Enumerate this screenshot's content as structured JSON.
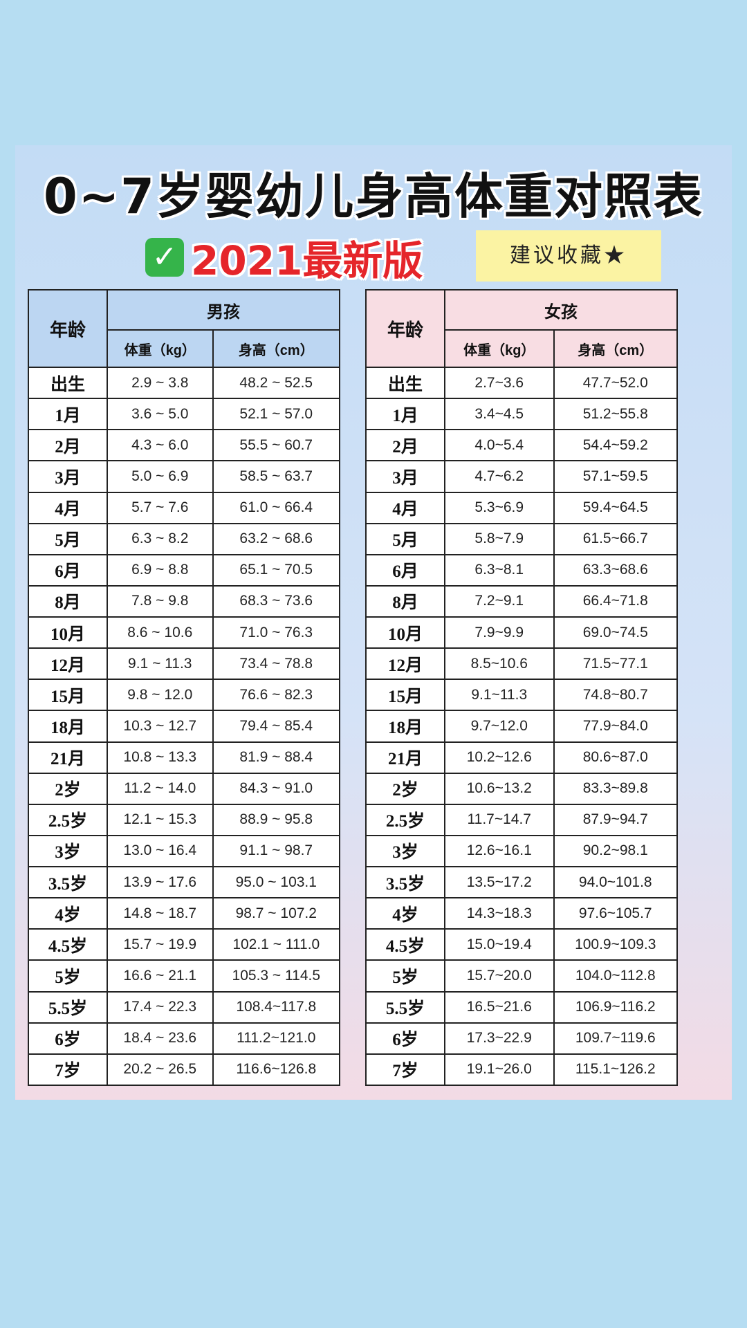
{
  "title": "0~7岁婴幼儿身高体重对照表",
  "subtitle": "2021最新版",
  "check_icon": "check-mark-icon",
  "sticky_note": "建议收藏★",
  "colors": {
    "background": "#b6ddf2",
    "male_header": "#bcd6f2",
    "female_header": "#f8dde3",
    "subtitle_red": "#e5252a",
    "check_green": "#35b44a",
    "note_yellow": "#fbf3a3"
  },
  "male": {
    "age_label": "年龄",
    "group_label": "男孩",
    "weight_label": "体重（kg）",
    "height_label": "身高（cm）",
    "rows": [
      {
        "age": "出生",
        "weight": "2.9 ~ 3.8",
        "height": "48.2 ~ 52.5"
      },
      {
        "age": "1月",
        "weight": "3.6 ~ 5.0",
        "height": "52.1 ~ 57.0"
      },
      {
        "age": "2月",
        "weight": "4.3 ~ 6.0",
        "height": "55.5 ~ 60.7"
      },
      {
        "age": "3月",
        "weight": "5.0 ~ 6.9",
        "height": "58.5 ~ 63.7"
      },
      {
        "age": "4月",
        "weight": "5.7 ~ 7.6",
        "height": "61.0 ~ 66.4"
      },
      {
        "age": "5月",
        "weight": "6.3 ~ 8.2",
        "height": "63.2 ~ 68.6"
      },
      {
        "age": "6月",
        "weight": "6.9 ~ 8.8",
        "height": "65.1 ~ 70.5"
      },
      {
        "age": "8月",
        "weight": "7.8 ~ 9.8",
        "height": "68.3 ~ 73.6"
      },
      {
        "age": "10月",
        "weight": "8.6 ~ 10.6",
        "height": "71.0 ~ 76.3"
      },
      {
        "age": "12月",
        "weight": "9.1 ~ 11.3",
        "height": "73.4 ~ 78.8"
      },
      {
        "age": "15月",
        "weight": "9.8 ~ 12.0",
        "height": "76.6 ~ 82.3"
      },
      {
        "age": "18月",
        "weight": "10.3 ~ 12.7",
        "height": "79.4 ~ 85.4"
      },
      {
        "age": "21月",
        "weight": "10.8 ~ 13.3",
        "height": "81.9 ~ 88.4"
      },
      {
        "age": "2岁",
        "weight": "11.2 ~ 14.0",
        "height": "84.3 ~ 91.0"
      },
      {
        "age": "2.5岁",
        "weight": "12.1 ~ 15.3",
        "height": "88.9 ~ 95.8"
      },
      {
        "age": "3岁",
        "weight": "13.0 ~ 16.4",
        "height": "91.1 ~ 98.7"
      },
      {
        "age": "3.5岁",
        "weight": "13.9 ~ 17.6",
        "height": "95.0 ~ 103.1"
      },
      {
        "age": "4岁",
        "weight": "14.8 ~ 18.7",
        "height": "98.7 ~ 107.2"
      },
      {
        "age": "4.5岁",
        "weight": "15.7 ~ 19.9",
        "height": "102.1 ~ 111.0"
      },
      {
        "age": "5岁",
        "weight": "16.6 ~ 21.1",
        "height": "105.3 ~ 114.5"
      },
      {
        "age": "5.5岁",
        "weight": "17.4 ~ 22.3",
        "height": "108.4~117.8"
      },
      {
        "age": "6岁",
        "weight": "18.4 ~ 23.6",
        "height": "111.2~121.0"
      },
      {
        "age": "7岁",
        "weight": "20.2 ~ 26.5",
        "height": "116.6~126.8"
      }
    ]
  },
  "female": {
    "age_label": "年龄",
    "group_label": "女孩",
    "weight_label": "体重（kg）",
    "height_label": "身高（cm）",
    "rows": [
      {
        "age": "出生",
        "weight": "2.7~3.6",
        "height": "47.7~52.0"
      },
      {
        "age": "1月",
        "weight": "3.4~4.5",
        "height": "51.2~55.8"
      },
      {
        "age": "2月",
        "weight": "4.0~5.4",
        "height": "54.4~59.2"
      },
      {
        "age": "3月",
        "weight": "4.7~6.2",
        "height": "57.1~59.5"
      },
      {
        "age": "4月",
        "weight": "5.3~6.9",
        "height": "59.4~64.5"
      },
      {
        "age": "5月",
        "weight": "5.8~7.9",
        "height": "61.5~66.7"
      },
      {
        "age": "6月",
        "weight": "6.3~8.1",
        "height": "63.3~68.6"
      },
      {
        "age": "8月",
        "weight": "7.2~9.1",
        "height": "66.4~71.8"
      },
      {
        "age": "10月",
        "weight": "7.9~9.9",
        "height": "69.0~74.5"
      },
      {
        "age": "12月",
        "weight": "8.5~10.6",
        "height": "71.5~77.1"
      },
      {
        "age": "15月",
        "weight": "9.1~11.3",
        "height": "74.8~80.7"
      },
      {
        "age": "18月",
        "weight": "9.7~12.0",
        "height": "77.9~84.0"
      },
      {
        "age": "21月",
        "weight": "10.2~12.6",
        "height": "80.6~87.0"
      },
      {
        "age": "2岁",
        "weight": "10.6~13.2",
        "height": "83.3~89.8"
      },
      {
        "age": "2.5岁",
        "weight": "11.7~14.7",
        "height": "87.9~94.7"
      },
      {
        "age": "3岁",
        "weight": "12.6~16.1",
        "height": "90.2~98.1"
      },
      {
        "age": "3.5岁",
        "weight": "13.5~17.2",
        "height": "94.0~101.8"
      },
      {
        "age": "4岁",
        "weight": "14.3~18.3",
        "height": "97.6~105.7"
      },
      {
        "age": "4.5岁",
        "weight": "15.0~19.4",
        "height": "100.9~109.3"
      },
      {
        "age": "5岁",
        "weight": "15.7~20.0",
        "height": "104.0~112.8"
      },
      {
        "age": "5.5岁",
        "weight": "16.5~21.6",
        "height": "106.9~116.2"
      },
      {
        "age": "6岁",
        "weight": "17.3~22.9",
        "height": "109.7~119.6"
      },
      {
        "age": "7岁",
        "weight": "19.1~26.0",
        "height": "115.1~126.2"
      }
    ]
  }
}
